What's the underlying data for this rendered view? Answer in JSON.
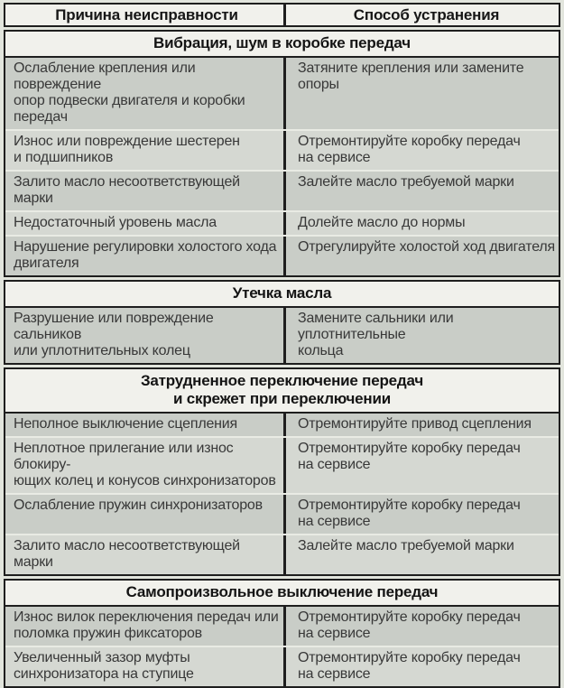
{
  "table": {
    "header": {
      "cause": "Причина неисправности",
      "remedy": "Способ устранения"
    },
    "sections": [
      {
        "title": "Вибрация, шум в коробке передач",
        "rows": [
          {
            "cause": "Ослабление крепления или повреждение\nопор подвески двигателя и коробки\nпередач",
            "remedy": "Затяните крепления или замените\nопоры"
          },
          {
            "cause": "Износ или повреждение шестерен\nи подшипников",
            "remedy": "Отремонтируйте коробку передач\nна сервисе"
          },
          {
            "cause": "Залито масло несоответствующей марки",
            "remedy": "Залейте масло требуемой марки"
          },
          {
            "cause": "Недостаточный уровень масла",
            "remedy": "Долейте масло до нормы"
          },
          {
            "cause": "Нарушение регулировки холостого хода\nдвигателя",
            "remedy": "Отрегулируйте холостой ход двигателя"
          }
        ]
      },
      {
        "title": "Утечка масла",
        "rows": [
          {
            "cause": "Разрушение или повреждение сальников\nили уплотнительных колец",
            "remedy": "Замените сальники  или уплотнительные\nкольца"
          }
        ]
      },
      {
        "title": "Затрудненное переключение передач\nи скрежет при переключении",
        "rows": [
          {
            "cause": "Неполное выключение сцепления",
            "remedy": "Отремонтируйте привод сцепления"
          },
          {
            "cause": "Неплотное прилегание или износ блокиру-\nющих колец и конусов синхронизаторов",
            "remedy": "Отремонтируйте коробку передач\nна сервисе"
          },
          {
            "cause": "Ослабление пружин синхронизаторов",
            "remedy": "Отремонтируйте коробку передач\nна сервисе"
          },
          {
            "cause": "Залито масло несоответствующей марки",
            "remedy": "Залейте масло требуемой марки"
          }
        ]
      },
      {
        "title": "Самопроизвольное выключение передач",
        "rows": [
          {
            "cause": "Износ вилок переключения передач или\nполомка пружин фиксаторов",
            "remedy": "Отремонтируйте коробку передач\nна сервисе"
          },
          {
            "cause": "Увеличенный зазор муфты\nсинхронизатора на ступице",
            "remedy": "Отремонтируйте коробку передач\nна сервисе"
          }
        ]
      }
    ]
  },
  "colors": {
    "page_background": "#e2e5dd",
    "band_background": "#f1f1ec",
    "row_dark": "#c9cdc7",
    "row_light": "#d5d8d2",
    "border": "#1e1e1e",
    "text": "#383838"
  }
}
